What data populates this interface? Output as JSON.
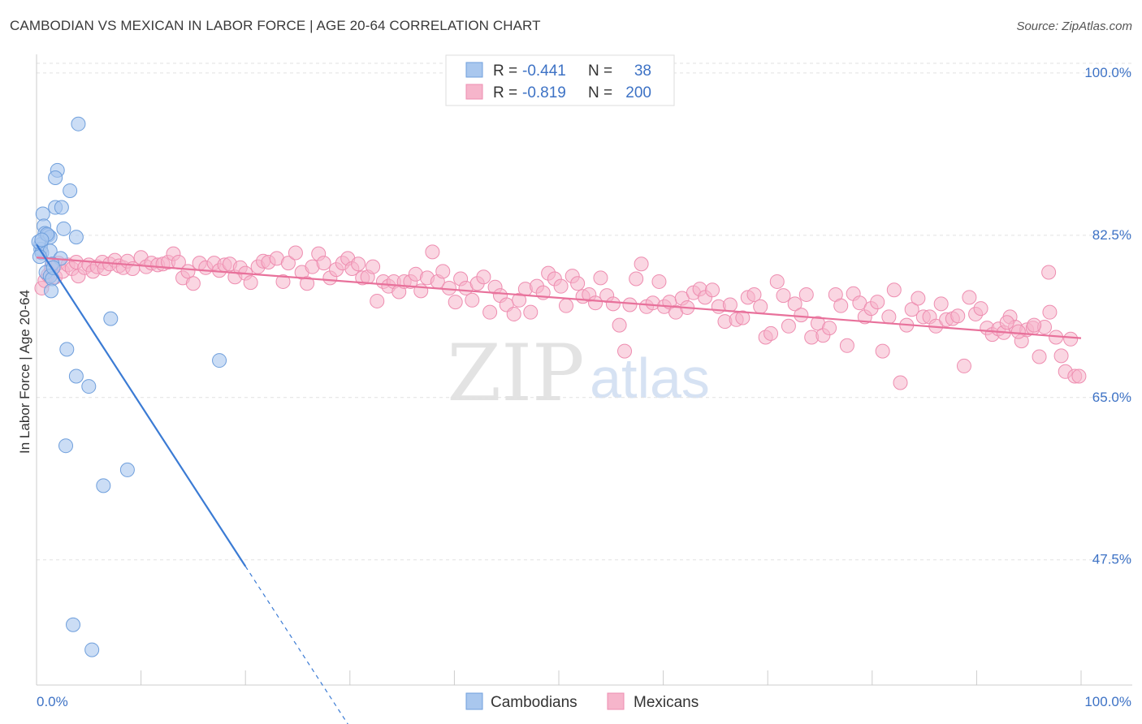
{
  "title": "CAMBODIAN VS MEXICAN IN LABOR FORCE | AGE 20-64 CORRELATION CHART",
  "source": "Source: ZipAtlas.com",
  "watermark": {
    "zip": "ZIP",
    "atlas": "atlas"
  },
  "colors": {
    "blue_fill": "#a9c7ee",
    "blue_stroke": "#6f9fdc",
    "blue_line": "#3b7bd4",
    "pink_fill": "#f6b5cb",
    "pink_stroke": "#ee8db0",
    "pink_line": "#e8719b",
    "grid": "#e2e2e2",
    "axis_text": "#3d72c5"
  },
  "legend": {
    "rows": [
      {
        "r_label": "R =",
        "r_value": "-0.441",
        "n_label": "N =",
        "n_value": "38"
      },
      {
        "r_label": "R =",
        "r_value": "-0.819",
        "n_label": "N =",
        "n_value": "200"
      }
    ]
  },
  "chart_data": {
    "type": "scatter",
    "xlabel": "",
    "ylabel": "In Labor Force | Age 20-64",
    "xlim": [
      0,
      100
    ],
    "ylim": [
      34,
      102
    ],
    "x_tick_labels": [
      "0.0%",
      "100.0%"
    ],
    "y_tick_values": [
      100,
      82.5,
      65,
      47.5
    ],
    "y_tick_labels": [
      "100.0%",
      "82.5%",
      "65.0%",
      "47.5%"
    ],
    "series": [
      {
        "name": "Cambodians",
        "r": -0.441,
        "n": 38,
        "trend": {
          "x0": 0,
          "y0": 81.5,
          "x1": 20,
          "y1": 46.8,
          "dash_to_x": 30
        },
        "points": [
          [
            4.0,
            94.5
          ],
          [
            2.0,
            89.5
          ],
          [
            1.8,
            88.7
          ],
          [
            3.2,
            87.3
          ],
          [
            1.8,
            85.5
          ],
          [
            2.4,
            85.5
          ],
          [
            0.6,
            84.8
          ],
          [
            0.7,
            83.5
          ],
          [
            2.6,
            83.2
          ],
          [
            0.8,
            82.7
          ],
          [
            1.1,
            82.5
          ],
          [
            1.3,
            82.3
          ],
          [
            3.8,
            82.3
          ],
          [
            0.4,
            81.5
          ],
          [
            0.4,
            81.0
          ],
          [
            0.5,
            80.6
          ],
          [
            1.3,
            80.8
          ],
          [
            2.3,
            80.0
          ],
          [
            1.5,
            79.4
          ],
          [
            0.9,
            78.5
          ],
          [
            1.3,
            78.1
          ],
          [
            1.5,
            77.8
          ],
          [
            1.4,
            76.5
          ],
          [
            7.1,
            73.5
          ],
          [
            2.9,
            70.2
          ],
          [
            17.5,
            69.0
          ],
          [
            3.8,
            67.3
          ],
          [
            5.0,
            66.2
          ],
          [
            2.8,
            59.8
          ],
          [
            8.7,
            57.2
          ],
          [
            6.4,
            55.5
          ],
          [
            3.5,
            40.5
          ],
          [
            5.3,
            37.8
          ],
          [
            0.2,
            81.8
          ],
          [
            0.3,
            80.2
          ],
          [
            1.0,
            82.6
          ],
          [
            1.6,
            79.0
          ],
          [
            0.5,
            82.0
          ]
        ]
      },
      {
        "name": "Mexicans",
        "r": -0.819,
        "n": 200,
        "trend": {
          "x0": 0,
          "y0": 80.1,
          "x1": 100,
          "y1": 71.4
        },
        "points": [
          [
            0.5,
            76.8
          ],
          [
            0.8,
            77.6
          ],
          [
            1.1,
            78.2
          ],
          [
            1.4,
            79.0
          ],
          [
            1.8,
            78.0
          ],
          [
            2.1,
            79.5
          ],
          [
            2.5,
            78.6
          ],
          [
            3.0,
            79.3
          ],
          [
            3.4,
            78.9
          ],
          [
            3.8,
            79.6
          ],
          [
            4.0,
            78.1
          ],
          [
            4.6,
            79.0
          ],
          [
            5.0,
            79.3
          ],
          [
            5.4,
            78.6
          ],
          [
            5.8,
            79.1
          ],
          [
            6.3,
            79.6
          ],
          [
            6.5,
            78.9
          ],
          [
            7.0,
            79.4
          ],
          [
            7.5,
            79.8
          ],
          [
            7.9,
            79.2
          ],
          [
            8.3,
            79.0
          ],
          [
            8.7,
            79.7
          ],
          [
            9.2,
            78.9
          ],
          [
            10.0,
            80.1
          ],
          [
            10.5,
            79.1
          ],
          [
            11.0,
            79.5
          ],
          [
            11.6,
            79.3
          ],
          [
            12.1,
            79.4
          ],
          [
            12.6,
            79.6
          ],
          [
            13.1,
            80.5
          ],
          [
            13.6,
            79.6
          ],
          [
            14.0,
            77.9
          ],
          [
            14.5,
            78.6
          ],
          [
            15.0,
            77.3
          ],
          [
            15.6,
            79.5
          ],
          [
            16.2,
            79.0
          ],
          [
            17.0,
            79.5
          ],
          [
            17.5,
            78.7
          ],
          [
            18.0,
            79.3
          ],
          [
            18.5,
            79.4
          ],
          [
            19.0,
            78.0
          ],
          [
            19.5,
            79.0
          ],
          [
            20.0,
            78.4
          ],
          [
            20.5,
            77.4
          ],
          [
            21.2,
            79.1
          ],
          [
            21.7,
            79.7
          ],
          [
            22.2,
            79.6
          ],
          [
            23.0,
            80.0
          ],
          [
            23.6,
            77.5
          ],
          [
            24.1,
            79.5
          ],
          [
            24.8,
            80.6
          ],
          [
            25.4,
            78.5
          ],
          [
            25.9,
            77.3
          ],
          [
            26.4,
            79.1
          ],
          [
            27.0,
            80.5
          ],
          [
            27.5,
            79.5
          ],
          [
            28.1,
            77.9
          ],
          [
            28.7,
            78.8
          ],
          [
            29.3,
            79.5
          ],
          [
            29.8,
            80.0
          ],
          [
            30.2,
            78.9
          ],
          [
            30.8,
            79.4
          ],
          [
            31.2,
            77.9
          ],
          [
            31.7,
            78.0
          ],
          [
            32.2,
            79.1
          ],
          [
            32.6,
            75.4
          ],
          [
            33.2,
            77.5
          ],
          [
            33.7,
            77.0
          ],
          [
            34.2,
            77.5
          ],
          [
            34.7,
            76.4
          ],
          [
            35.2,
            77.5
          ],
          [
            35.8,
            77.5
          ],
          [
            36.3,
            78.3
          ],
          [
            36.8,
            76.5
          ],
          [
            37.4,
            77.9
          ],
          [
            37.9,
            80.7
          ],
          [
            38.4,
            77.5
          ],
          [
            38.9,
            78.6
          ],
          [
            39.5,
            76.8
          ],
          [
            40.1,
            75.3
          ],
          [
            40.6,
            77.8
          ],
          [
            41.1,
            76.8
          ],
          [
            41.7,
            75.5
          ],
          [
            42.2,
            77.3
          ],
          [
            42.8,
            78.0
          ],
          [
            43.4,
            74.2
          ],
          [
            43.9,
            76.9
          ],
          [
            44.4,
            76.0
          ],
          [
            45.0,
            75.0
          ],
          [
            45.7,
            74.0
          ],
          [
            46.2,
            75.5
          ],
          [
            46.8,
            76.7
          ],
          [
            47.3,
            74.2
          ],
          [
            47.9,
            77.0
          ],
          [
            48.5,
            76.3
          ],
          [
            49.0,
            78.4
          ],
          [
            49.6,
            77.8
          ],
          [
            50.2,
            77.0
          ],
          [
            50.7,
            74.9
          ],
          [
            51.3,
            78.1
          ],
          [
            51.8,
            77.3
          ],
          [
            52.3,
            75.9
          ],
          [
            52.9,
            76.1
          ],
          [
            53.5,
            75.2
          ],
          [
            54.0,
            77.9
          ],
          [
            54.6,
            76.0
          ],
          [
            55.2,
            75.1
          ],
          [
            55.8,
            72.8
          ],
          [
            56.3,
            70.0
          ],
          [
            56.8,
            75.0
          ],
          [
            57.4,
            77.8
          ],
          [
            57.9,
            79.4
          ],
          [
            58.4,
            74.8
          ],
          [
            59.0,
            75.2
          ],
          [
            59.6,
            77.5
          ],
          [
            60.1,
            74.8
          ],
          [
            60.6,
            75.3
          ],
          [
            61.2,
            74.2
          ],
          [
            61.8,
            75.7
          ],
          [
            62.3,
            74.7
          ],
          [
            62.9,
            76.3
          ],
          [
            63.5,
            76.7
          ],
          [
            64.0,
            75.8
          ],
          [
            64.7,
            76.6
          ],
          [
            65.3,
            74.8
          ],
          [
            65.9,
            73.2
          ],
          [
            66.4,
            75.0
          ],
          [
            67.0,
            73.4
          ],
          [
            67.6,
            73.6
          ],
          [
            68.1,
            75.8
          ],
          [
            68.7,
            76.1
          ],
          [
            69.3,
            74.8
          ],
          [
            69.8,
            71.5
          ],
          [
            70.3,
            71.9
          ],
          [
            70.9,
            77.5
          ],
          [
            71.5,
            76.0
          ],
          [
            72.0,
            72.7
          ],
          [
            72.6,
            75.1
          ],
          [
            73.2,
            73.9
          ],
          [
            73.7,
            76.1
          ],
          [
            74.2,
            71.5
          ],
          [
            74.8,
            73.0
          ],
          [
            75.3,
            71.7
          ],
          [
            75.9,
            72.5
          ],
          [
            76.5,
            76.1
          ],
          [
            77.0,
            74.9
          ],
          [
            77.6,
            70.6
          ],
          [
            78.2,
            76.2
          ],
          [
            78.8,
            75.2
          ],
          [
            79.3,
            73.7
          ],
          [
            79.9,
            74.6
          ],
          [
            80.5,
            75.3
          ],
          [
            81.0,
            70.0
          ],
          [
            81.6,
            73.7
          ],
          [
            82.1,
            76.6
          ],
          [
            82.7,
            66.6
          ],
          [
            83.3,
            72.8
          ],
          [
            83.8,
            74.5
          ],
          [
            84.4,
            75.7
          ],
          [
            84.9,
            73.7
          ],
          [
            85.5,
            73.7
          ],
          [
            86.1,
            72.7
          ],
          [
            86.6,
            75.1
          ],
          [
            87.1,
            73.4
          ],
          [
            87.7,
            73.5
          ],
          [
            88.2,
            73.8
          ],
          [
            88.8,
            68.4
          ],
          [
            89.3,
            75.8
          ],
          [
            89.9,
            74.0
          ],
          [
            90.4,
            74.6
          ],
          [
            91.0,
            72.5
          ],
          [
            91.5,
            71.8
          ],
          [
            92.1,
            72.4
          ],
          [
            92.6,
            72.0
          ],
          [
            93.2,
            73.7
          ],
          [
            93.7,
            72.6
          ],
          [
            94.3,
            71.1
          ],
          [
            94.8,
            72.3
          ],
          [
            95.4,
            72.5
          ],
          [
            96.0,
            69.4
          ],
          [
            96.5,
            72.6
          ],
          [
            97.0,
            74.2
          ],
          [
            97.6,
            71.5
          ],
          [
            98.1,
            69.5
          ],
          [
            98.5,
            67.8
          ],
          [
            99.0,
            71.3
          ],
          [
            99.4,
            67.3
          ],
          [
            99.8,
            67.3
          ],
          [
            96.9,
            78.5
          ],
          [
            95.5,
            72.8
          ],
          [
            94.0,
            72.1
          ],
          [
            92.9,
            73.1
          ]
        ]
      }
    ]
  }
}
